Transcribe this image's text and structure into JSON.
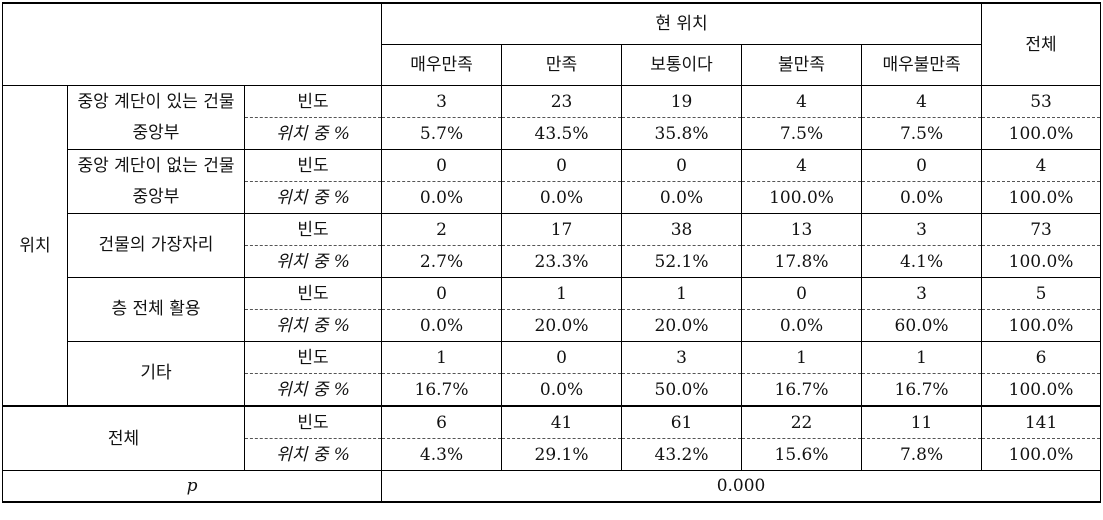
{
  "header": {
    "group": "현 위치",
    "columns": [
      "매우만족",
      "만족",
      "보통이다",
      "불만족",
      "매우불만족"
    ],
    "total": "전체"
  },
  "row_group": "위치",
  "metrics": {
    "freq": "빈도",
    "pct": "위치 중 %"
  },
  "rows": [
    {
      "label": "중앙 계단이 있는 건물 중앙부",
      "freq": [
        "3",
        "23",
        "19",
        "4",
        "4",
        "53"
      ],
      "pct": [
        "5.7%",
        "43.5%",
        "35.8%",
        "7.5%",
        "7.5%",
        "100.0%"
      ]
    },
    {
      "label": "중앙 계단이 없는 건물 중앙부",
      "freq": [
        "0",
        "0",
        "0",
        "4",
        "0",
        "4"
      ],
      "pct": [
        "0.0%",
        "0.0%",
        "0.0%",
        "100.0%",
        "0.0%",
        "100.0%"
      ]
    },
    {
      "label": "건물의 가장자리",
      "freq": [
        "2",
        "17",
        "38",
        "13",
        "3",
        "73"
      ],
      "pct": [
        "2.7%",
        "23.3%",
        "52.1%",
        "17.8%",
        "4.1%",
        "100.0%"
      ]
    },
    {
      "label": "층 전체 활용",
      "freq": [
        "0",
        "1",
        "1",
        "0",
        "3",
        "5"
      ],
      "pct": [
        "0.0%",
        "20.0%",
        "20.0%",
        "0.0%",
        "60.0%",
        "100.0%"
      ]
    },
    {
      "label": "기타",
      "freq": [
        "1",
        "0",
        "3",
        "1",
        "1",
        "6"
      ],
      "pct": [
        "16.7%",
        "0.0%",
        "50.0%",
        "16.7%",
        "16.7%",
        "100.0%"
      ]
    }
  ],
  "total_row": {
    "label": "전체",
    "freq": [
      "6",
      "41",
      "61",
      "22",
      "11",
      "141"
    ],
    "pct": [
      "4.3%",
      "29.1%",
      "43.2%",
      "15.6%",
      "7.8%",
      "100.0%"
    ]
  },
  "p_row": {
    "label": "p",
    "value": "0.000"
  }
}
